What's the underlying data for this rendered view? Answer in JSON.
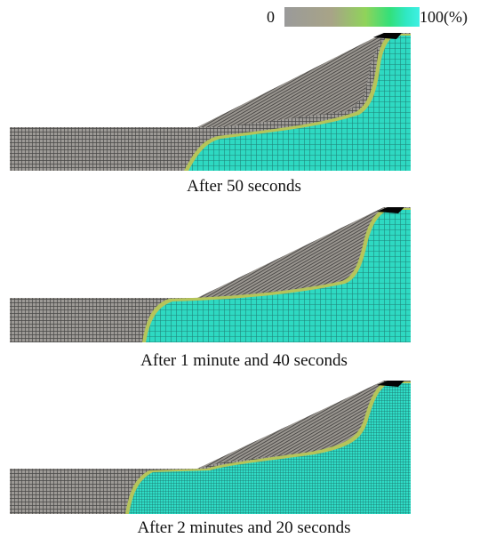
{
  "colorbar": {
    "min_label": "0",
    "max_label": "100(%)",
    "colors": [
      "#9a9a9a",
      "#a8a487",
      "#8fd35a",
      "#33e07a",
      "#2fe8c3",
      "#3ff0e4"
    ]
  },
  "fill_colors": {
    "dry": "#9d9a96",
    "wet": "#2ed9c2",
    "front": "#b5c45a",
    "mesh_line": "#1c1c1c",
    "crest": "#050505"
  },
  "panels": [
    {
      "caption": "After 50 seconds"
    },
    {
      "caption": "After 1 minute and 40 seconds"
    },
    {
      "caption": "After 2 minutes and 20 seconds"
    }
  ]
}
